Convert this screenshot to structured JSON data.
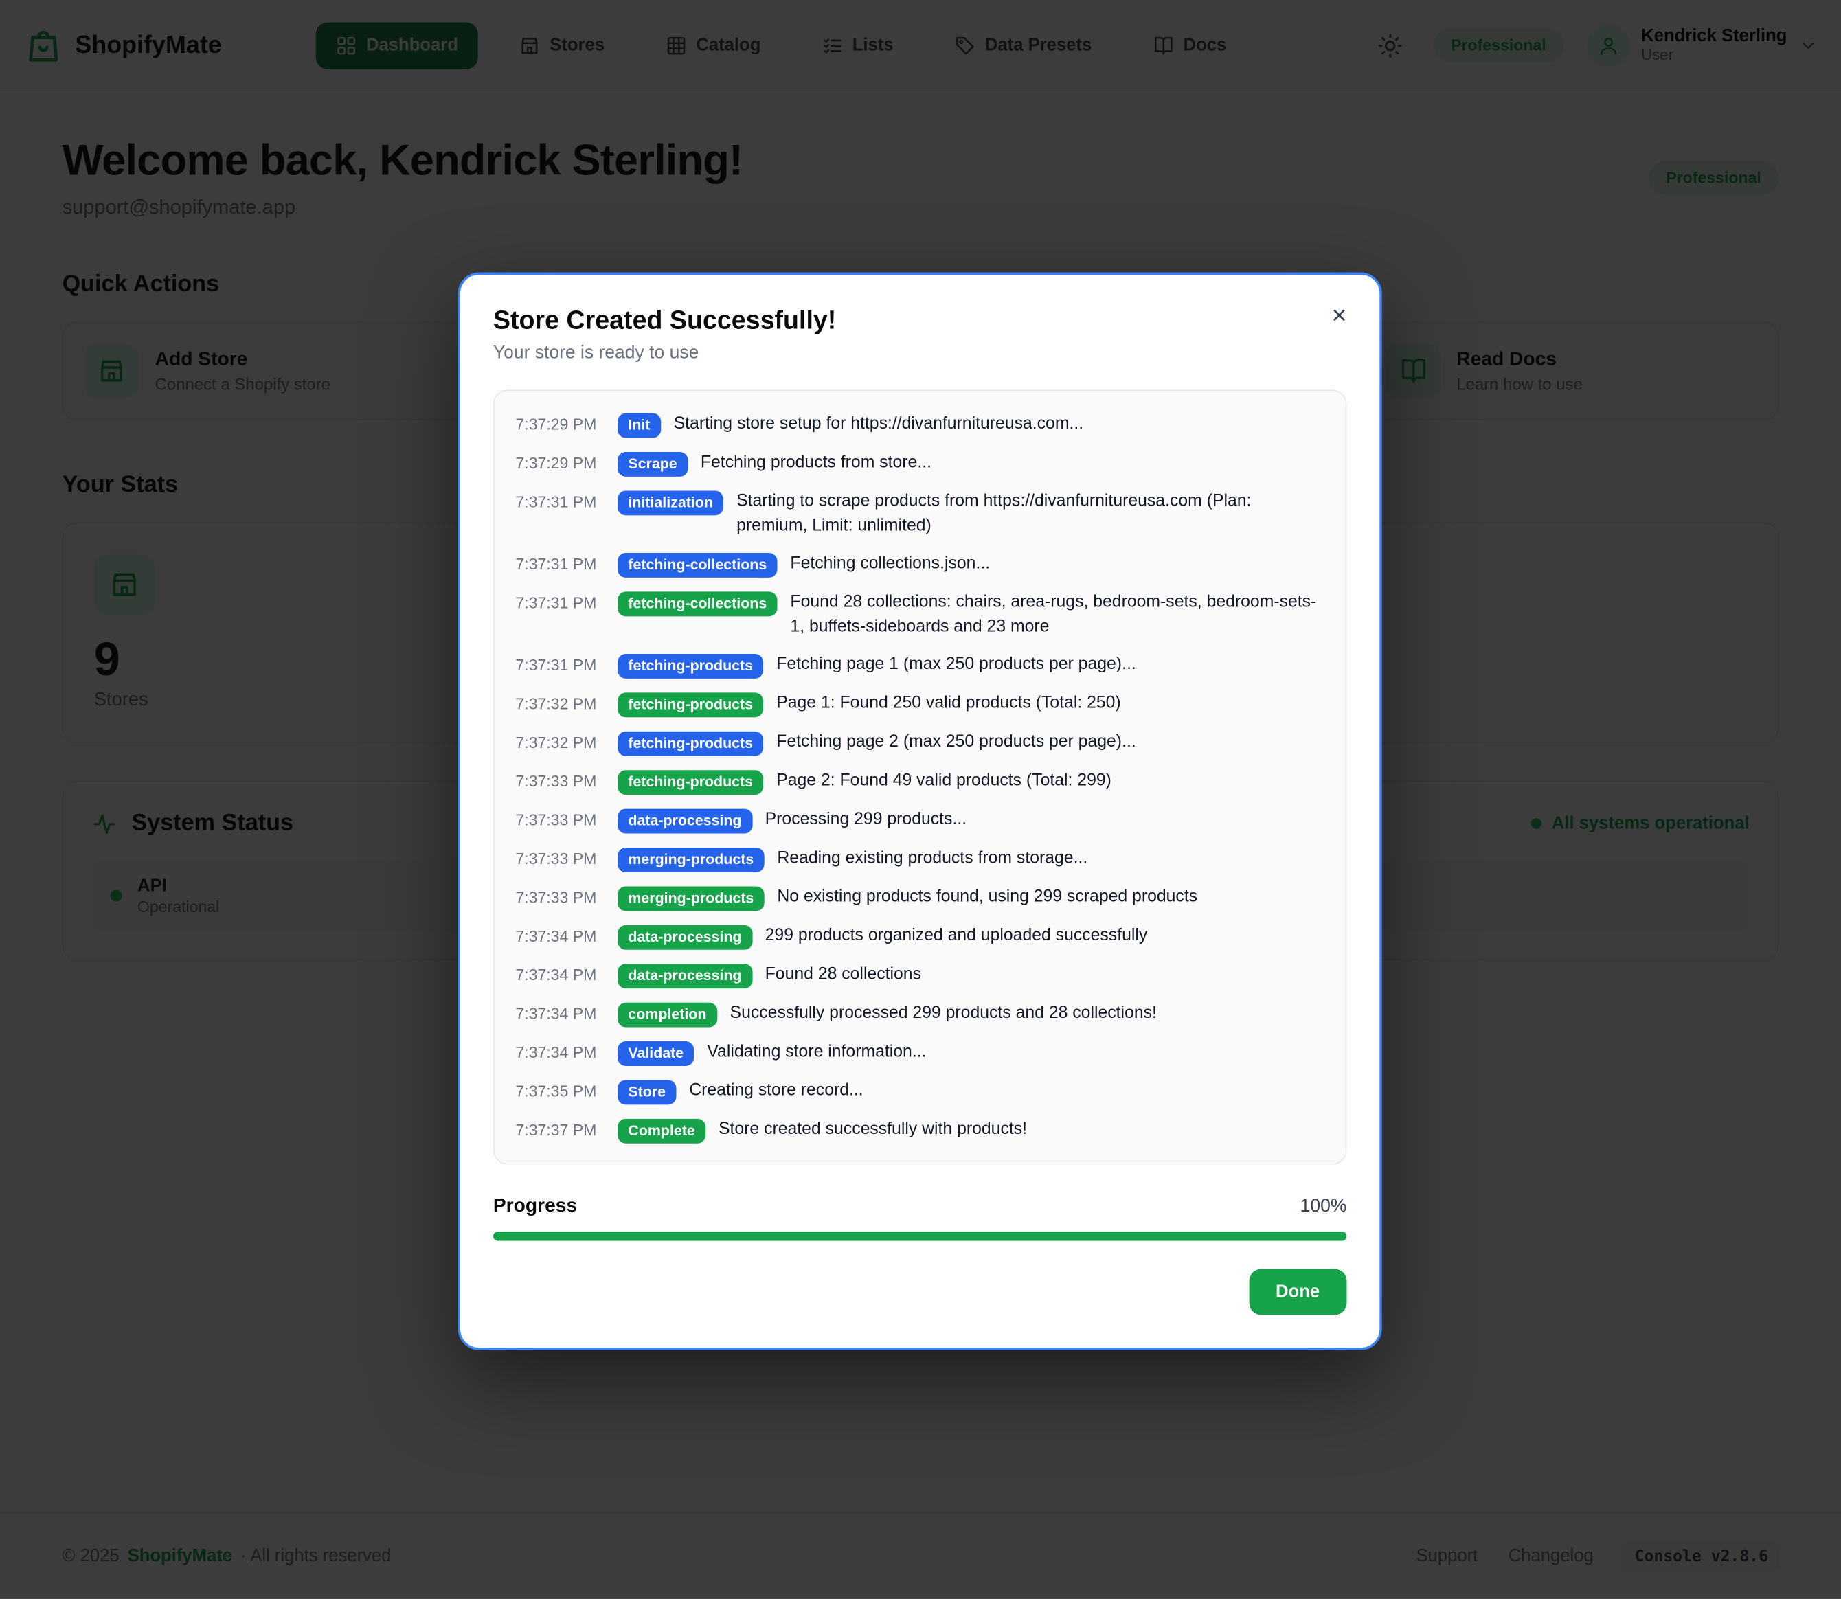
{
  "colors": {
    "primary_green": "#16a34a",
    "info_blue": "#2563eb",
    "modal_border": "#3b82f6",
    "status_green": "#22c55e"
  },
  "nav": {
    "brand": "ShopifyMate",
    "items": [
      {
        "label": "Dashboard",
        "icon": "grid-icon",
        "active": true
      },
      {
        "label": "Stores",
        "icon": "store-icon",
        "active": false
      },
      {
        "label": "Catalog",
        "icon": "catalog-grid-icon",
        "active": false
      },
      {
        "label": "Lists",
        "icon": "checklist-icon",
        "active": false
      },
      {
        "label": "Data Presets",
        "icon": "tag-icon",
        "active": false
      },
      {
        "label": "Docs",
        "icon": "book-icon",
        "active": false
      }
    ],
    "plan_badge": "Professional",
    "user": {
      "name": "Kendrick Sterling",
      "role": "User"
    }
  },
  "header": {
    "title": "Welcome back, Kendrick Sterling!",
    "email": "support@shopifymate.app",
    "plan_badge": "Professional"
  },
  "quick_actions": {
    "title": "Quick Actions",
    "cards": [
      {
        "title": "Add Store",
        "subtitle": "Connect a Shopify store",
        "icon": "store-icon"
      },
      {
        "title": "Read Docs",
        "subtitle": "Learn how to use",
        "icon": "book-icon"
      }
    ]
  },
  "stats": {
    "title": "Your Stats",
    "value": "9",
    "label": "Stores",
    "icon": "store-icon"
  },
  "system_status": {
    "title": "System Status",
    "icon": "activity-icon",
    "overall": "All systems operational",
    "items": [
      {
        "name": "API",
        "status": "Operational"
      }
    ]
  },
  "footer": {
    "copyright_prefix": "© 2025",
    "brand": "ShopifyMate",
    "rights": "· All rights reserved",
    "links": [
      "Support",
      "Changelog"
    ],
    "version": "Console v2.8.6"
  },
  "modal": {
    "title": "Store Created Successfully!",
    "subtitle": "Your store is ready to use",
    "close_label": "×",
    "progress_label": "Progress",
    "progress_value": "100%",
    "progress_percent": 100,
    "done_label": "Done",
    "log": [
      {
        "time": "7:37:29 PM",
        "badge": "Init",
        "type": "info",
        "message": "Starting store setup for https://divanfurnitureusa.com..."
      },
      {
        "time": "7:37:29 PM",
        "badge": "Scrape",
        "type": "info",
        "message": "Fetching products from store..."
      },
      {
        "time": "7:37:31 PM",
        "badge": "initialization",
        "type": "info",
        "message": "Starting to scrape products from https://divanfurnitureusa.com (Plan: premium, Limit: unlimited)"
      },
      {
        "time": "7:37:31 PM",
        "badge": "fetching-collections",
        "type": "info",
        "message": "Fetching collections.json..."
      },
      {
        "time": "7:37:31 PM",
        "badge": "fetching-collections",
        "type": "success",
        "message": "Found 28 collections: chairs, area-rugs, bedroom-sets, bedroom-sets-1, buffets-sideboards and 23 more"
      },
      {
        "time": "7:37:31 PM",
        "badge": "fetching-products",
        "type": "info",
        "message": "Fetching page 1 (max 250 products per page)..."
      },
      {
        "time": "7:37:32 PM",
        "badge": "fetching-products",
        "type": "success",
        "message": "Page 1: Found 250 valid products (Total: 250)"
      },
      {
        "time": "7:37:32 PM",
        "badge": "fetching-products",
        "type": "info",
        "message": "Fetching page 2 (max 250 products per page)..."
      },
      {
        "time": "7:37:33 PM",
        "badge": "fetching-products",
        "type": "success",
        "message": "Page 2: Found 49 valid products (Total: 299)"
      },
      {
        "time": "7:37:33 PM",
        "badge": "data-processing",
        "type": "info",
        "message": "Processing 299 products..."
      },
      {
        "time": "7:37:33 PM",
        "badge": "merging-products",
        "type": "info",
        "message": "Reading existing products from storage..."
      },
      {
        "time": "7:37:33 PM",
        "badge": "merging-products",
        "type": "success",
        "message": "No existing products found, using 299 scraped products"
      },
      {
        "time": "7:37:34 PM",
        "badge": "data-processing",
        "type": "success",
        "message": "299 products organized and uploaded successfully"
      },
      {
        "time": "7:37:34 PM",
        "badge": "data-processing",
        "type": "success",
        "message": "Found 28 collections"
      },
      {
        "time": "7:37:34 PM",
        "badge": "completion",
        "type": "success",
        "message": "Successfully processed 299 products and 28 collections!"
      },
      {
        "time": "7:37:34 PM",
        "badge": "Validate",
        "type": "info",
        "message": "Validating store information..."
      },
      {
        "time": "7:37:35 PM",
        "badge": "Store",
        "type": "info",
        "message": "Creating store record..."
      },
      {
        "time": "7:37:37 PM",
        "badge": "Complete",
        "type": "success",
        "message": "Store created successfully with products!"
      }
    ]
  }
}
